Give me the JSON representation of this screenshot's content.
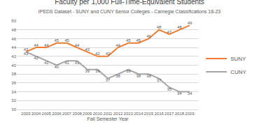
{
  "chart_data": {
    "type": "line",
    "title": "Faculty per 1,000 Full-Time-Equivalent Students",
    "subtitle": "IPEDS Dataset - SUNY and CUNY Senior Colleges - Carnegie Classifications 18-23",
    "x_label": "Fall Semester Year",
    "categories": [
      "2003",
      "2004",
      "2005",
      "2006",
      "2007",
      "2008",
      "2009",
      "2010",
      "2011",
      "2012",
      "2013",
      "2014",
      "2015",
      "2016",
      "2017",
      "2018",
      "2019"
    ],
    "series": [
      {
        "name": "SUNY",
        "color": "#ed7d31",
        "values": [
          43,
          44,
          44,
          45,
          45,
          44,
          43,
          42,
          42,
          44,
          45,
          45,
          46,
          48,
          47,
          48,
          49
        ]
      },
      {
        "name": "CUNY",
        "color": "#a5a5a5",
        "values": [
          43,
          42,
          41,
          40,
          41,
          41,
          39,
          39,
          37,
          38,
          39,
          38,
          38,
          37,
          35,
          34,
          34
        ]
      }
    ],
    "ylim": [
      30,
      50
    ],
    "yticks": [
      30,
      32,
      34,
      36,
      38,
      40,
      42,
      44,
      46,
      48,
      50
    ],
    "grid": true,
    "legend": "right",
    "data_labels": true
  }
}
